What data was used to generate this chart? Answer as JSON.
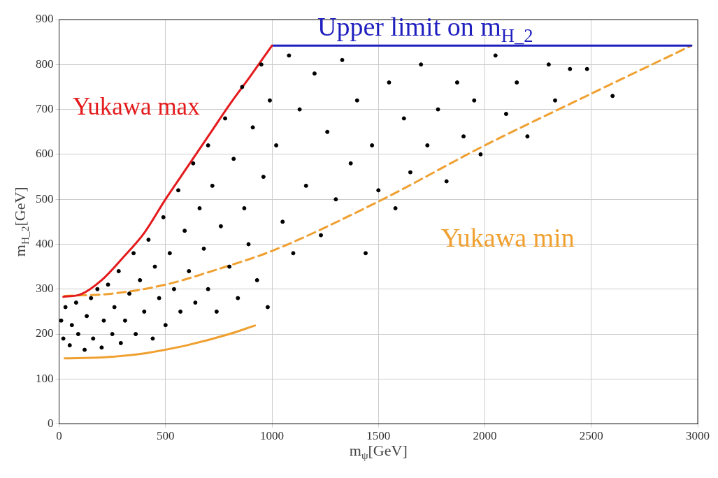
{
  "chart_data": {
    "type": "scatter",
    "xlabel": "m$_{ψ}$[GeV]",
    "ylabel": "m$_{H_2}$[GeV]",
    "xlim": [
      0,
      3000
    ],
    "ylim": [
      0,
      900
    ],
    "xticks": [
      0,
      500,
      1000,
      1500,
      2000,
      2500,
      3000
    ],
    "yticks": [
      0,
      100,
      200,
      300,
      400,
      500,
      600,
      700,
      800,
      900
    ],
    "grid": true,
    "series": [
      {
        "marker": "circle",
        "color": "#000000",
        "x": [
          10,
          20,
          30,
          50,
          60,
          80,
          90,
          120,
          130,
          150,
          160,
          180,
          200,
          210,
          230,
          250,
          260,
          280,
          290,
          310,
          330,
          350,
          360,
          380,
          400,
          420,
          440,
          450,
          470,
          490,
          500,
          520,
          540,
          560,
          570,
          590,
          610,
          630,
          640,
          660,
          680,
          700,
          700,
          720,
          740,
          760,
          780,
          800,
          820,
          840,
          860,
          870,
          890,
          910,
          930,
          950,
          960,
          980,
          990,
          1020,
          1050,
          1080,
          1100,
          1130,
          1160,
          1200,
          1230,
          1260,
          1300,
          1330,
          1370,
          1400,
          1440,
          1470,
          1500,
          1550,
          1580,
          1620,
          1650,
          1700,
          1730,
          1780,
          1820,
          1870,
          1900,
          1950,
          1980,
          2050,
          2100,
          2150,
          2200,
          2300,
          2330,
          2400,
          2480,
          2600
        ],
        "values": [
          230,
          190,
          260,
          175,
          220,
          270,
          200,
          165,
          240,
          280,
          190,
          300,
          170,
          230,
          310,
          200,
          260,
          340,
          180,
          230,
          290,
          380,
          200,
          320,
          250,
          410,
          190,
          350,
          280,
          460,
          220,
          380,
          300,
          520,
          250,
          430,
          340,
          580,
          270,
          480,
          390,
          620,
          300,
          530,
          250,
          440,
          680,
          350,
          590,
          280,
          750,
          480,
          400,
          660,
          320,
          800,
          550,
          260,
          720,
          620,
          450,
          820,
          380,
          700,
          530,
          780,
          420,
          650,
          500,
          810,
          580,
          720,
          380,
          620,
          520,
          760,
          480,
          680,
          560,
          800,
          620,
          700,
          540,
          760,
          640,
          720,
          600,
          820,
          690,
          760,
          640,
          800,
          720,
          790,
          790,
          730
        ]
      },
      {
        "type": "line",
        "marker": "none",
        "color": "#e41a1c",
        "line_style": "solid",
        "x": [
          20,
          100,
          200,
          300,
          400,
          500,
          600,
          700,
          800,
          900,
          1000
        ],
        "values": [
          283,
          288,
          320,
          370,
          425,
          500,
          570,
          640,
          710,
          775,
          842
        ]
      },
      {
        "type": "line",
        "marker": "none",
        "color": "#1f1fbf",
        "line_style": "solid",
        "x": [
          1000,
          2970
        ],
        "values": [
          842,
          842
        ]
      },
      {
        "type": "line",
        "marker": "none",
        "color": "#f0a030",
        "line_style": "dashed",
        "x": [
          25,
          250,
          500,
          750,
          1000,
          1500,
          2000,
          2500,
          2970
        ],
        "values": [
          285,
          290,
          310,
          345,
          385,
          495,
          620,
          735,
          842
        ]
      },
      {
        "type": "line",
        "marker": "none",
        "color": "#f0a030",
        "line_style": "solid",
        "x": [
          26,
          200,
          400,
          600,
          800,
          920
        ],
        "values": [
          146,
          148,
          157,
          175,
          200,
          219
        ]
      }
    ],
    "annotations": [
      {
        "text": "Yukawa max",
        "x": 700,
        "y": 640
      },
      {
        "text": "Upper limit on m$_{H_2}$",
        "x": 1720,
        "y": 842
      },
      {
        "text": "Yukawa min",
        "x": 1700,
        "y": 545
      }
    ]
  }
}
